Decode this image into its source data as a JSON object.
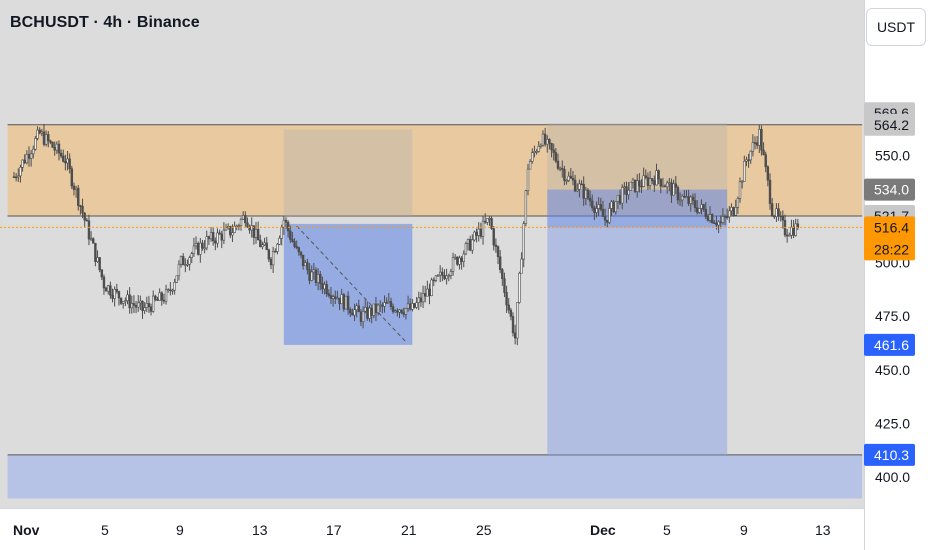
{
  "header": {
    "title": "BCHUSDT · 4h · Binance",
    "currency_button": "USDT"
  },
  "colors": {
    "background": "#dcdcdc",
    "candle": "#4d4d4d",
    "supply_zone": "#e8c9a0",
    "demand_zone": "#8ea6e6",
    "price_line": "#ff9800",
    "label_blue": "#2962ff"
  },
  "chart_data": {
    "type": "candlestick",
    "symbol": "BCHUSDT",
    "timeframe": "4h",
    "exchange": "Binance",
    "ylim": [
      385,
      585
    ],
    "y_ticks": [
      400.0,
      425.0,
      450.0,
      475.0,
      500.0,
      550.0
    ],
    "x_ticks": [
      "Nov",
      "5",
      "9",
      "13",
      "17",
      "21",
      "25",
      "Dec",
      "5",
      "9",
      "13"
    ],
    "price_scale_labels": [
      {
        "value": 569.6,
        "text": "569.6",
        "style": "gray"
      },
      {
        "value": 564.2,
        "text": "564.2",
        "style": "gray"
      },
      {
        "value": 534.0,
        "text": "534.0",
        "style": "dark"
      },
      {
        "value": 521.7,
        "text": "521.7",
        "style": "gray"
      },
      {
        "value": 516.4,
        "text": "516.4",
        "countdown": "28:22",
        "style": "orange"
      },
      {
        "value": 461.6,
        "text": "461.6",
        "style": "blue"
      },
      {
        "value": 410.3,
        "text": "410.3",
        "style": "blue"
      }
    ],
    "current_price": 516.4,
    "close_points": [
      [
        0,
        540
      ],
      [
        2,
        560
      ],
      [
        4,
        548
      ],
      [
        5,
        530
      ],
      [
        6,
        510
      ],
      [
        7,
        490
      ],
      [
        8,
        485
      ],
      [
        10,
        478
      ],
      [
        12,
        485
      ],
      [
        13,
        500
      ],
      [
        15,
        510
      ],
      [
        17,
        515
      ],
      [
        18,
        522
      ],
      [
        19,
        510
      ],
      [
        20,
        502
      ],
      [
        21,
        520
      ],
      [
        22,
        505
      ],
      [
        23,
        495
      ],
      [
        25,
        485
      ],
      [
        27,
        475
      ],
      [
        29,
        480
      ],
      [
        31,
        478
      ],
      [
        33,
        492
      ],
      [
        35,
        505
      ],
      [
        37,
        520
      ],
      [
        38,
        492
      ],
      [
        39,
        465
      ],
      [
        40,
        545
      ],
      [
        41,
        558
      ],
      [
        42,
        550
      ],
      [
        43,
        540
      ],
      [
        44,
        535
      ],
      [
        45,
        528
      ],
      [
        46,
        520
      ],
      [
        47,
        530
      ],
      [
        48,
        535
      ],
      [
        50,
        540
      ],
      [
        52,
        530
      ],
      [
        54,
        523
      ],
      [
        55,
        518
      ],
      [
        56,
        525
      ],
      [
        57,
        548
      ],
      [
        58,
        560
      ],
      [
        59,
        525
      ],
      [
        60,
        515
      ],
      [
        61,
        516.4
      ]
    ],
    "zones": [
      {
        "type": "supply",
        "from_day": -0.5,
        "to_day": 66,
        "top": 564.2,
        "bottom": 521.7
      },
      {
        "type": "demand",
        "from_day": -0.5,
        "to_day": 66,
        "top": 410.3,
        "bottom": 390
      }
    ],
    "boxes": [
      {
        "kind": "gray",
        "from_day": 21,
        "to_day": 31,
        "top": 562,
        "bottom": 521.7
      },
      {
        "kind": "blue",
        "from_day": 21,
        "to_day": 31,
        "top": 518,
        "bottom": 461.6
      },
      {
        "kind": "gray",
        "from_day": 41.5,
        "to_day": 55.5,
        "top": 565,
        "bottom": 534
      },
      {
        "kind": "blue-dark",
        "from_day": 41.5,
        "to_day": 55.5,
        "top": 534,
        "bottom": 516.4
      },
      {
        "kind": "blue-light",
        "from_day": 41.5,
        "to_day": 55.5,
        "top": 516.4,
        "bottom": 410.3
      }
    ],
    "trend_line": {
      "from": [
        22,
        517
      ],
      "to": [
        30.5,
        463
      ]
    }
  }
}
